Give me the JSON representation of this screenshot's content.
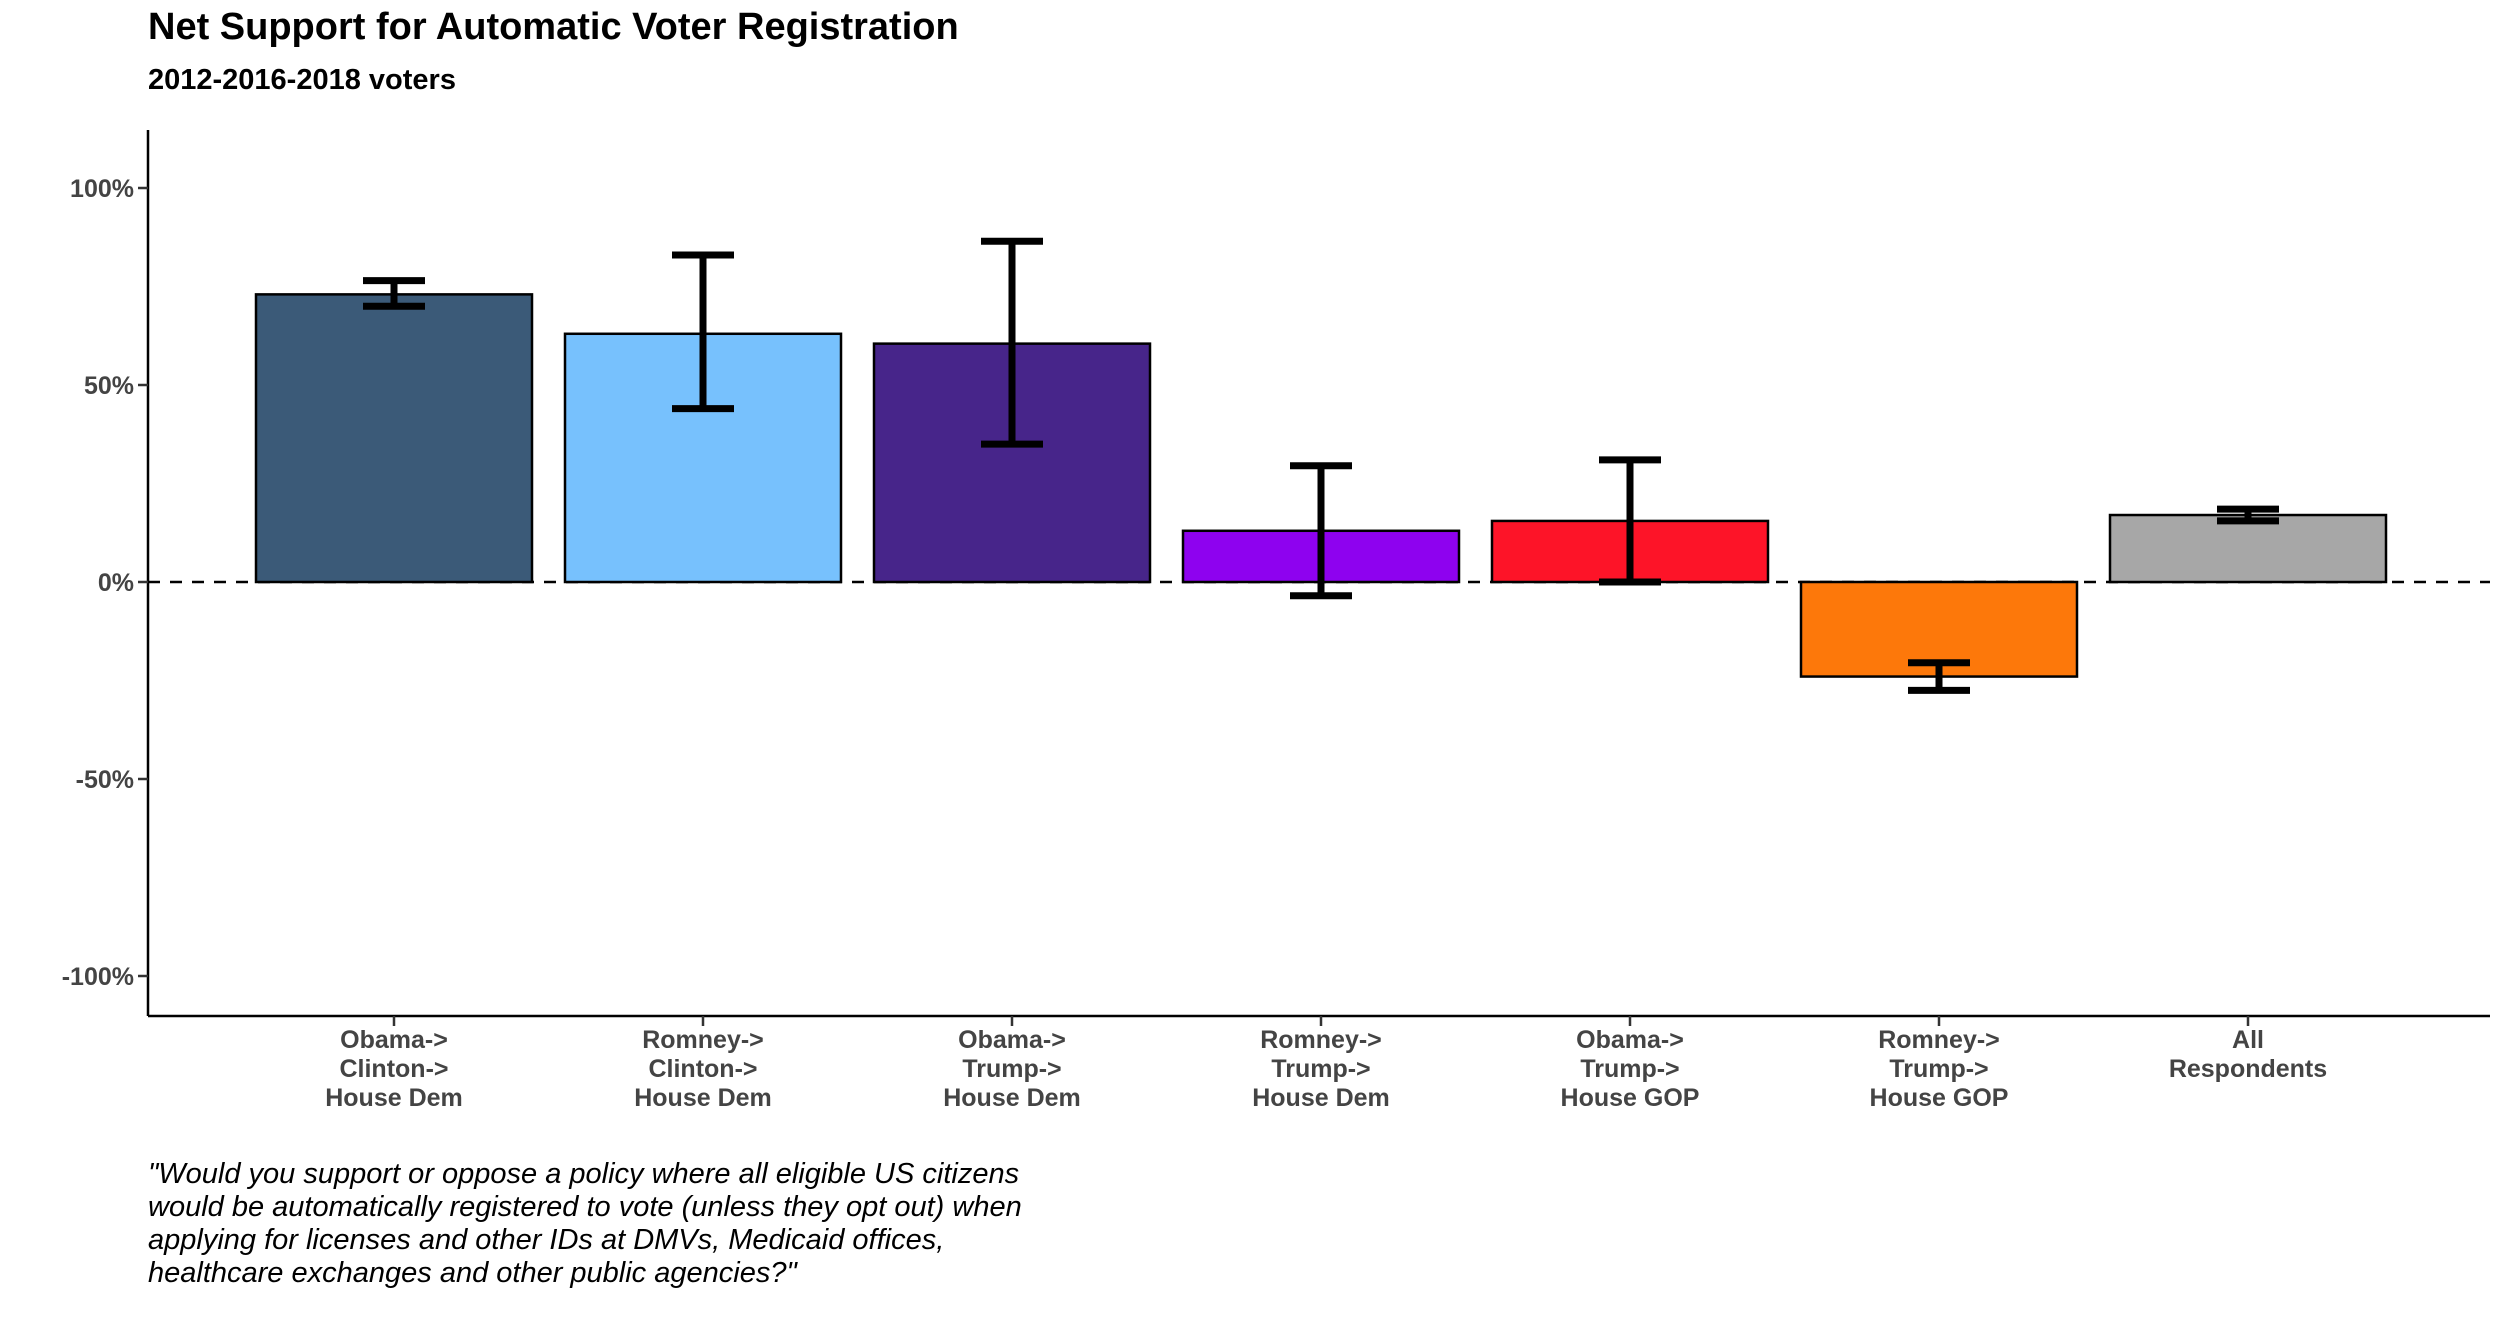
{
  "chart_data": {
    "type": "bar",
    "title": "Net Support for Automatic Voter Registration",
    "subtitle": "2012-2016-2018 voters",
    "xlabel": "",
    "ylabel": "",
    "ylim": [
      -110,
      120
    ],
    "yticks": [
      100,
      50,
      0,
      -50,
      -100
    ],
    "ytick_labels": [
      "100%",
      "50%",
      "0%",
      "-50%",
      "-100%"
    ],
    "reference_line": {
      "y": 0,
      "style": "dashed"
    },
    "legend": "none",
    "grid": false,
    "categories": [
      [
        "Obama->",
        "Clinton->",
        "House Dem"
      ],
      [
        "Romney->",
        "Clinton->",
        "House Dem"
      ],
      [
        "Obama->",
        "Trump->",
        "House Dem"
      ],
      [
        "Romney->",
        "Trump->",
        "House Dem"
      ],
      [
        "Obama->",
        "Trump->",
        "House GOP"
      ],
      [
        "Romney->",
        "Trump->",
        "House GOP"
      ],
      [
        "All",
        "Respondents"
      ]
    ],
    "values": [
      73,
      63,
      60.5,
      13,
      15.5,
      -24,
      17
    ],
    "error_low": [
      70,
      44,
      35,
      -3.5,
      0,
      -27.5,
      15.5
    ],
    "error_high": [
      76.5,
      83,
      86.5,
      29.5,
      31,
      -20.5,
      18.5
    ],
    "colors": [
      "#3B5A78",
      "#77C1FD",
      "#47258A",
      "#8E02EF",
      "#FD1428",
      "#FD780A",
      "#A7A7A7"
    ]
  },
  "caption": "\"Would you support or oppose a policy where all eligible US citizens would be automatically registered to vote (unless they opt out) when applying for licenses and other IDs at DMVs, Medicaid offices, healthcare exchanges and other public agencies?\""
}
